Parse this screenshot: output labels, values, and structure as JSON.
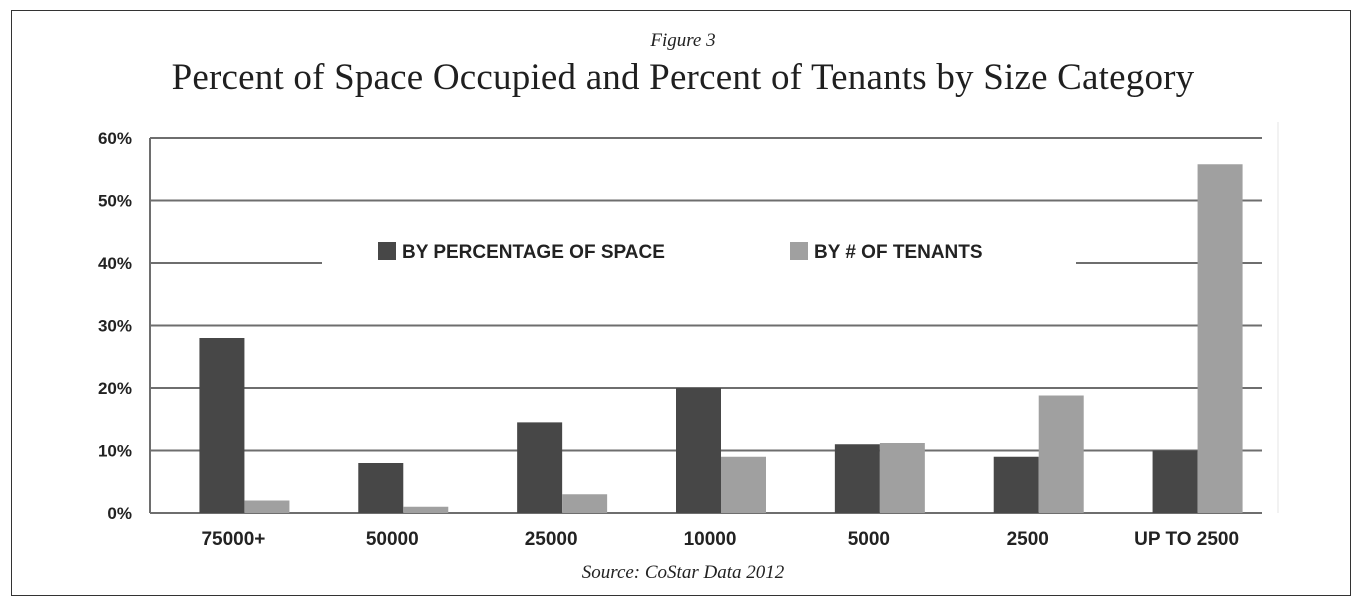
{
  "figure_label": "Figure 3",
  "source": "Source: CoStar Data 2012",
  "colors": {
    "space": "#474747",
    "tenants": "#a0a0a0",
    "grid": "#6e6e6e"
  },
  "chart_data": {
    "type": "bar",
    "title": "Percent of Space Occupied and Percent of Tenants by Size Category",
    "xlabel": "",
    "ylabel": "",
    "categories": [
      "75000+",
      "50000",
      "25000",
      "10000",
      "5000",
      "2500",
      "UP TO 2500"
    ],
    "series": [
      {
        "name": "BY PERCENTAGE OF SPACE",
        "values": [
          28,
          8,
          14.5,
          20,
          11,
          9,
          10
        ]
      },
      {
        "name": "BY # OF TENANTS",
        "values": [
          2,
          1,
          3,
          9,
          11.2,
          18.8,
          55.8
        ]
      }
    ],
    "ylim": [
      0,
      60
    ],
    "yticks": [
      "0%",
      "10%",
      "20%",
      "30%",
      "40%",
      "50%",
      "60%"
    ],
    "grid": true,
    "legend_position": "top-center"
  }
}
